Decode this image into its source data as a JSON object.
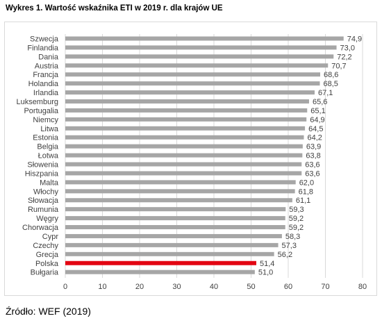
{
  "title": "Wykres 1. Wartość wskaźnika ETI w 2019 r. dla krajów UE",
  "source": "Źródło: WEF (2019)",
  "colors": {
    "bar": "#a6a6a6",
    "highlight": "#e30613",
    "grid": "#d9d9d9"
  },
  "chart_data": {
    "type": "bar",
    "orientation": "horizontal",
    "title": "",
    "xlabel": "",
    "ylabel": "",
    "xlim": [
      0,
      80
    ],
    "x_ticks": [
      "0",
      "10",
      "20",
      "30",
      "40",
      "50",
      "60",
      "70",
      "80"
    ],
    "grid": "vertical",
    "categories": [
      "Szwecja",
      "Finlandia",
      "Dania",
      "Austria",
      "Francja",
      "Holandia",
      "Irlandia",
      "Luksemburg",
      "Portugalia",
      "Niemcy",
      "Litwa",
      "Estonia",
      "Belgia",
      "Łotwa",
      "Słowenia",
      "Hiszpania",
      "Malta",
      "Włochy",
      "Słowacja",
      "Rumunia",
      "Węgry",
      "Chorwacja",
      "Cypr",
      "Czechy",
      "Grecja",
      "Polska",
      "Bułgaria"
    ],
    "values": [
      74.9,
      73.0,
      72.2,
      70.7,
      68.6,
      68.5,
      67.1,
      65.6,
      65.1,
      64.9,
      64.5,
      64.2,
      63.9,
      63.8,
      63.6,
      63.6,
      62.0,
      61.8,
      61.1,
      59.3,
      59.2,
      59.2,
      58.3,
      57.3,
      56.2,
      51.4,
      51.0
    ],
    "value_labels": [
      "74,9",
      "73,0",
      "72,2",
      "70,7",
      "68,6",
      "68,5",
      "67,1",
      "65,6",
      "65,1",
      "64,9",
      "64,5",
      "64,2",
      "63,9",
      "63,8",
      "63,6",
      "63,6",
      "62,0",
      "61,8",
      "61,1",
      "59,3",
      "59,2",
      "59,2",
      "58,3",
      "57,3",
      "56,2",
      "51,4",
      "51,0"
    ],
    "highlighted_category": "Polska"
  }
}
